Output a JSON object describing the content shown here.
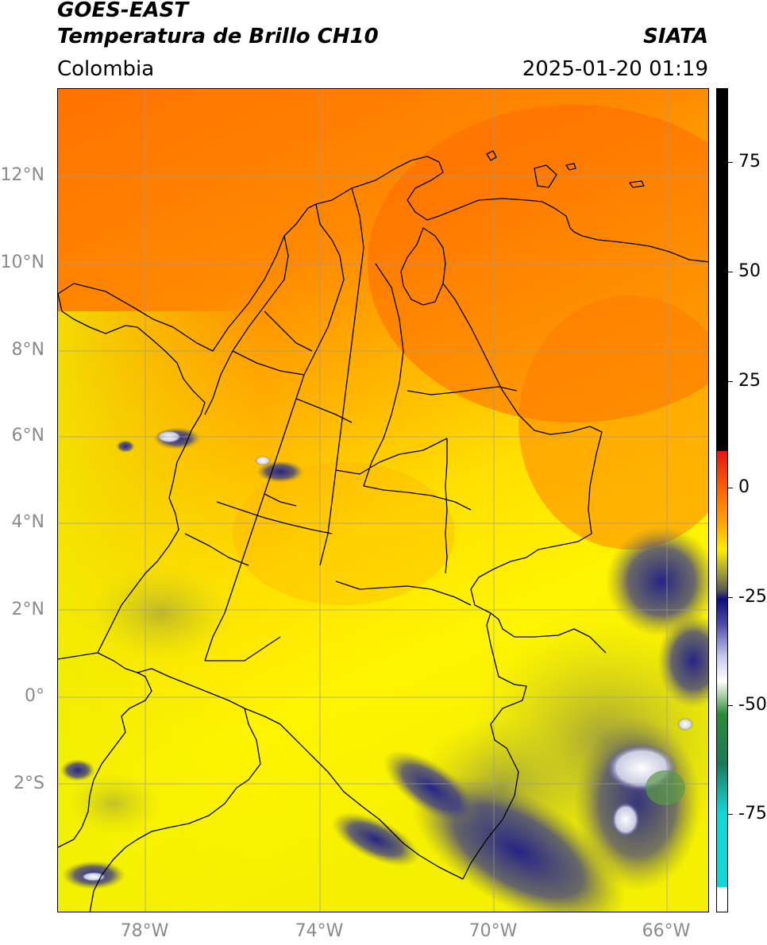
{
  "header": {
    "satellite": "GOES-EAST",
    "product": "Temperatura de Brillo CH10",
    "region": "Colombia",
    "brand": "SIATA",
    "timestamp": "2025-01-20 01:19"
  },
  "map": {
    "lat_ticks": [
      "12°N",
      "10°N",
      "8°N",
      "6°N",
      "4°N",
      "2°N",
      "0°",
      "2°S"
    ],
    "lon_ticks": [
      "78°W",
      "74°W",
      "70°W",
      "66°W"
    ],
    "gridlines": true,
    "border_color": "#000000"
  },
  "colorbar": {
    "ticks": [
      "75",
      "50",
      "25",
      "0",
      "-25",
      "-50",
      "-75"
    ],
    "colors": {
      "black": "#000000",
      "red": "#e8140c",
      "orange": "#ff7a00",
      "yellow": "#ffee00",
      "olive": "#9a9a3a",
      "navy": "#0d0d80",
      "white": "#ffffff",
      "green": "#2a8a3a",
      "cyan": "#10d8d8"
    }
  }
}
